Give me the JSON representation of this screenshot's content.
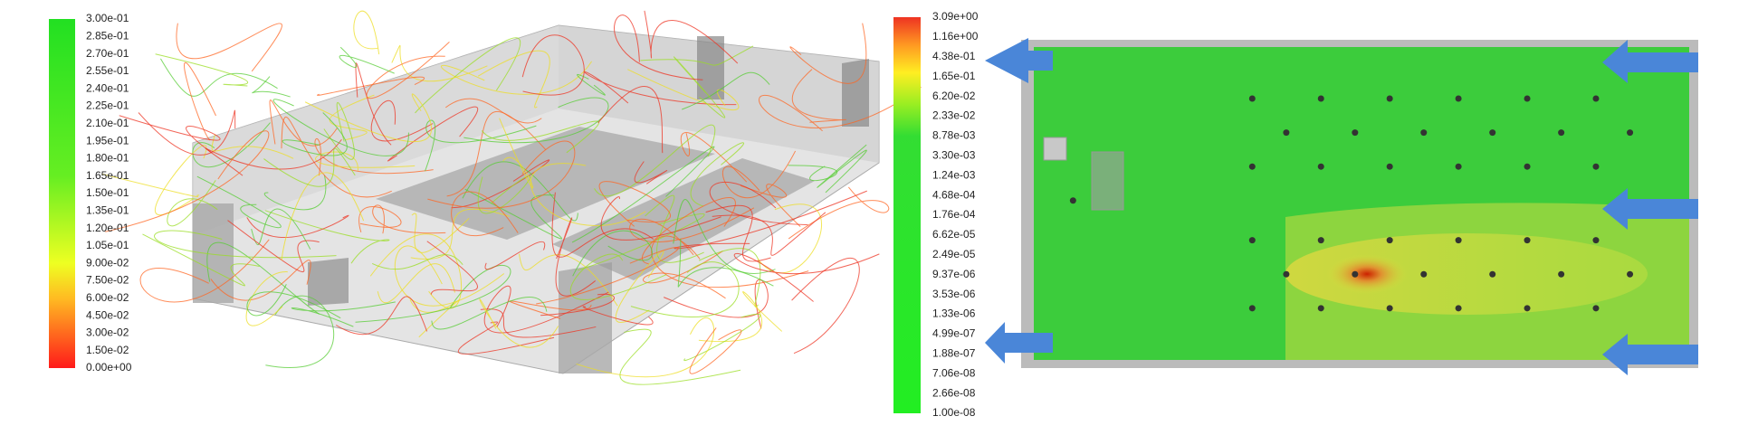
{
  "left_colorbar": {
    "labels": [
      "3.00e-01",
      "2.85e-01",
      "2.70e-01",
      "2.55e-01",
      "2.40e-01",
      "2.25e-01",
      "2.10e-01",
      "1.95e-01",
      "1.80e-01",
      "1.65e-01",
      "1.50e-01",
      "1.35e-01",
      "1.20e-01",
      "1.05e-01",
      "9.00e-02",
      "7.50e-02",
      "6.00e-02",
      "4.50e-02",
      "3.00e-02",
      "1.50e-02",
      "0.00e+00"
    ]
  },
  "right_colorbar": {
    "labels": [
      "3.09e+00",
      "1.16e+00",
      "4.38e-01",
      "1.65e-01",
      "6.20e-02",
      "2.33e-02",
      "8.78e-03",
      "3.30e-03",
      "1.24e-03",
      "4.68e-04",
      "1.76e-04",
      "6.62e-05",
      "2.49e-05",
      "9.37e-06",
      "3.53e-06",
      "1.33e-06",
      "4.99e-07",
      "1.88e-07",
      "7.06e-08",
      "2.66e-08",
      "1.00e-08"
    ]
  }
}
